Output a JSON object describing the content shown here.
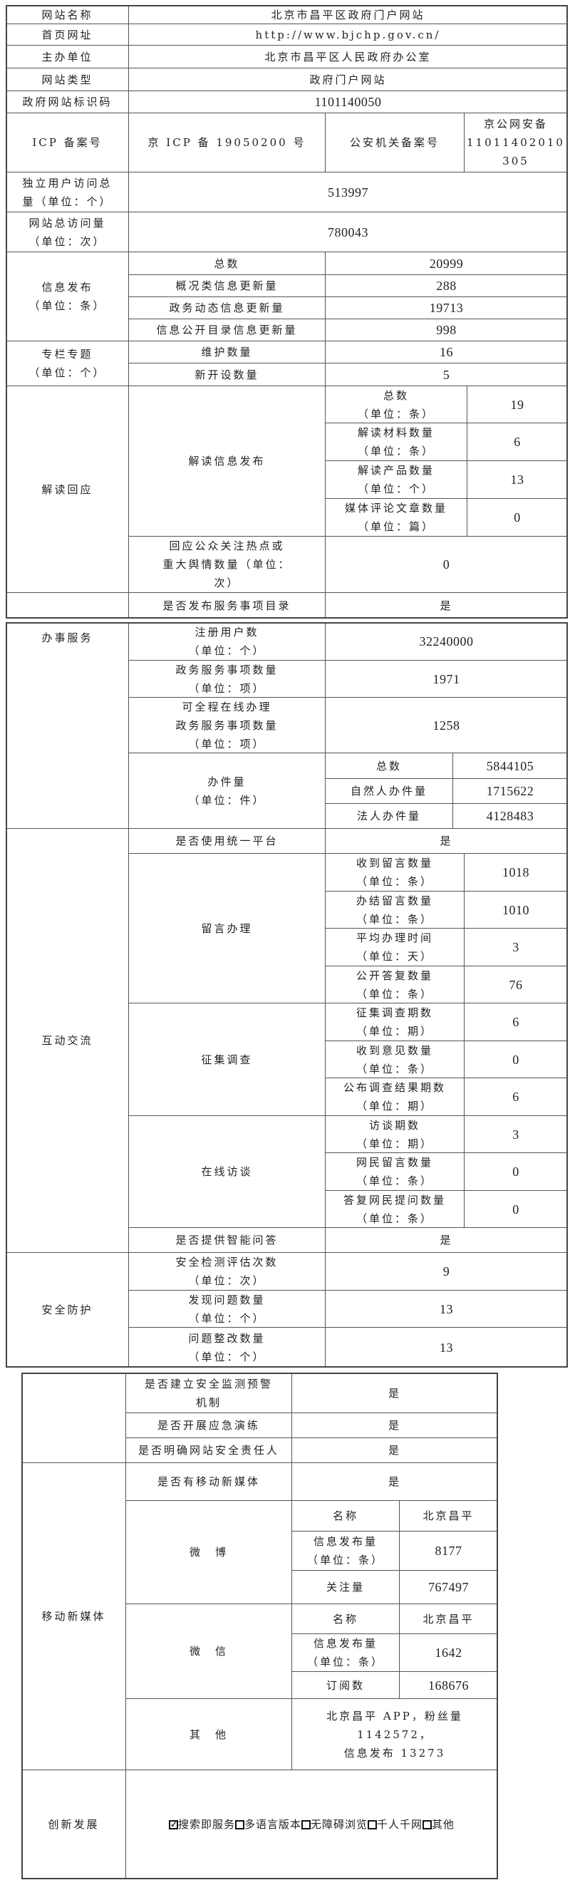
{
  "basic": {
    "site_name": {
      "label": "网站名称",
      "value": "北京市昌平区政府门户网站"
    },
    "homepage": {
      "label": "首页网址",
      "value": "http://www.bjchp.gov.cn/"
    },
    "sponsor": {
      "label": "主办单位",
      "value": "北京市昌平区人民政府办公室"
    },
    "site_type": {
      "label": "网站类型",
      "value": "政府门户网站"
    },
    "site_code": {
      "label": "政府网站标识码",
      "value": "1101140050"
    },
    "icp": {
      "label": "ICP 备案号",
      "value": "京 ICP 备 19050200 号",
      "police_label": "公安机关备案号",
      "police_value": "京公网安备\n11011402010\n305"
    },
    "unique_visitors": {
      "label": "独立用户访问总\n量（单位：个）",
      "value": "513997"
    },
    "total_visits": {
      "label": "网站总访问量\n（单位：次）",
      "value": "780043"
    }
  },
  "info_publish": {
    "label": "信息发布\n（单位：条）",
    "rows": [
      {
        "label": "总数",
        "value": "20999"
      },
      {
        "label": "概况类信息更新量",
        "value": "288"
      },
      {
        "label": "政务动态信息更新量",
        "value": "19713"
      },
      {
        "label": "信息公开目录信息更新量",
        "value": "998"
      }
    ]
  },
  "columns": {
    "label": "专栏专题\n（单位：个）",
    "rows": [
      {
        "label": "维护数量",
        "value": "16"
      },
      {
        "label": "新开设数量",
        "value": "5"
      }
    ]
  },
  "interpretation": {
    "label": "解读回应",
    "publish_label": "解读信息发布",
    "rows": [
      {
        "label": "总数\n（单位：条）",
        "value": "19"
      },
      {
        "label": "解读材料数量\n（单位：条）",
        "value": "6"
      },
      {
        "label": "解读产品数量\n（单位：个）",
        "value": "13"
      },
      {
        "label": "媒体评论文章数量\n（单位：篇）",
        "value": "0"
      }
    ],
    "response": {
      "label": "回应公众关注热点或\n重大舆情数量（单位：\n次）",
      "value": "0"
    }
  },
  "service_catalog": {
    "label": "是否发布服务事项目录",
    "value": "是"
  },
  "services": {
    "label": "办事服务",
    "rows": [
      {
        "label": "注册用户数\n（单位：个）",
        "value": "32240000"
      },
      {
        "label": "政务服务事项数量\n（单位：项）",
        "value": "1971"
      },
      {
        "label": "可全程在线办理\n政务服务事项数量\n（单位：项）",
        "value": "1258"
      }
    ],
    "cases": {
      "label": "办件量\n（单位：件）",
      "rows": [
        {
          "label": "总数",
          "value": "5844105"
        },
        {
          "label": "自然人办件量",
          "value": "1715622"
        },
        {
          "label": "法人办件量",
          "value": "4128483"
        }
      ]
    }
  },
  "interaction": {
    "label": "互动交流",
    "unified_platform": {
      "label": "是否使用统一平台",
      "value": "是"
    },
    "messages": {
      "label": "留言办理",
      "rows": [
        {
          "label": "收到留言数量\n（单位：条）",
          "value": "1018"
        },
        {
          "label": "办结留言数量\n（单位：条）",
          "value": "1010"
        },
        {
          "label": "平均办理时间\n（单位：天）",
          "value": "3"
        },
        {
          "label": "公开答复数量\n（单位：条）",
          "value": "76"
        }
      ]
    },
    "surveys": {
      "label": "征集调查",
      "rows": [
        {
          "label": "征集调查期数\n（单位：期）",
          "value": "6"
        },
        {
          "label": "收到意见数量\n（单位：条）",
          "value": "0"
        },
        {
          "label": "公布调查结果期数\n（单位：期）",
          "value": "6"
        }
      ]
    },
    "interviews": {
      "label": "在线访谈",
      "rows": [
        {
          "label": "访谈期数\n（单位：期）",
          "value": "3"
        },
        {
          "label": "网民留言数量\n（单位：条）",
          "value": "0"
        },
        {
          "label": "答复网民提问数量\n（单位：条）",
          "value": "0"
        }
      ]
    },
    "smart_qa": {
      "label": "是否提供智能问答",
      "value": "是"
    }
  },
  "security": {
    "label": "安全防护",
    "rows": [
      {
        "label": "安全检测评估次数\n（单位：次）",
        "value": "9"
      },
      {
        "label": "发现问题数量\n（单位：个）",
        "value": "13"
      },
      {
        "label": "问题整改数量\n（单位：个）",
        "value": "13"
      }
    ],
    "extra_rows": [
      {
        "label": "是否建立安全监测预警\n机制",
        "value": "是"
      },
      {
        "label": "是否开展应急演练",
        "value": "是"
      },
      {
        "label": "是否明确网站安全责任人",
        "value": "是"
      }
    ]
  },
  "new_media": {
    "label": "移动新媒体",
    "has_media": {
      "label": "是否有移动新媒体",
      "value": "是"
    },
    "weibo": {
      "label": "微　博",
      "rows": [
        {
          "label": "名称",
          "value": "北京昌平"
        },
        {
          "label": "信息发布量\n（单位：条）",
          "value": "8177"
        },
        {
          "label": "关注量",
          "value": "767497"
        }
      ]
    },
    "wechat": {
      "label": "微　信",
      "rows": [
        {
          "label": "名称",
          "value": "北京昌平"
        },
        {
          "label": "信息发布量\n（单位：条）",
          "value": "1642"
        },
        {
          "label": "订阅数",
          "value": "168676"
        }
      ]
    },
    "other": {
      "label": "其　他",
      "value": "北京昌平 APP，粉丝量 1142572，\n信息发布 13273"
    }
  },
  "innovation": {
    "label": "创新发展",
    "options": [
      {
        "label": "搜索即服务",
        "checked": true
      },
      {
        "label": "多语言版本",
        "checked": false
      },
      {
        "label": "无障碍浏览",
        "checked": false
      },
      {
        "label": "千人千网",
        "checked": false
      },
      {
        "label": "其他",
        "checked": false
      }
    ]
  }
}
